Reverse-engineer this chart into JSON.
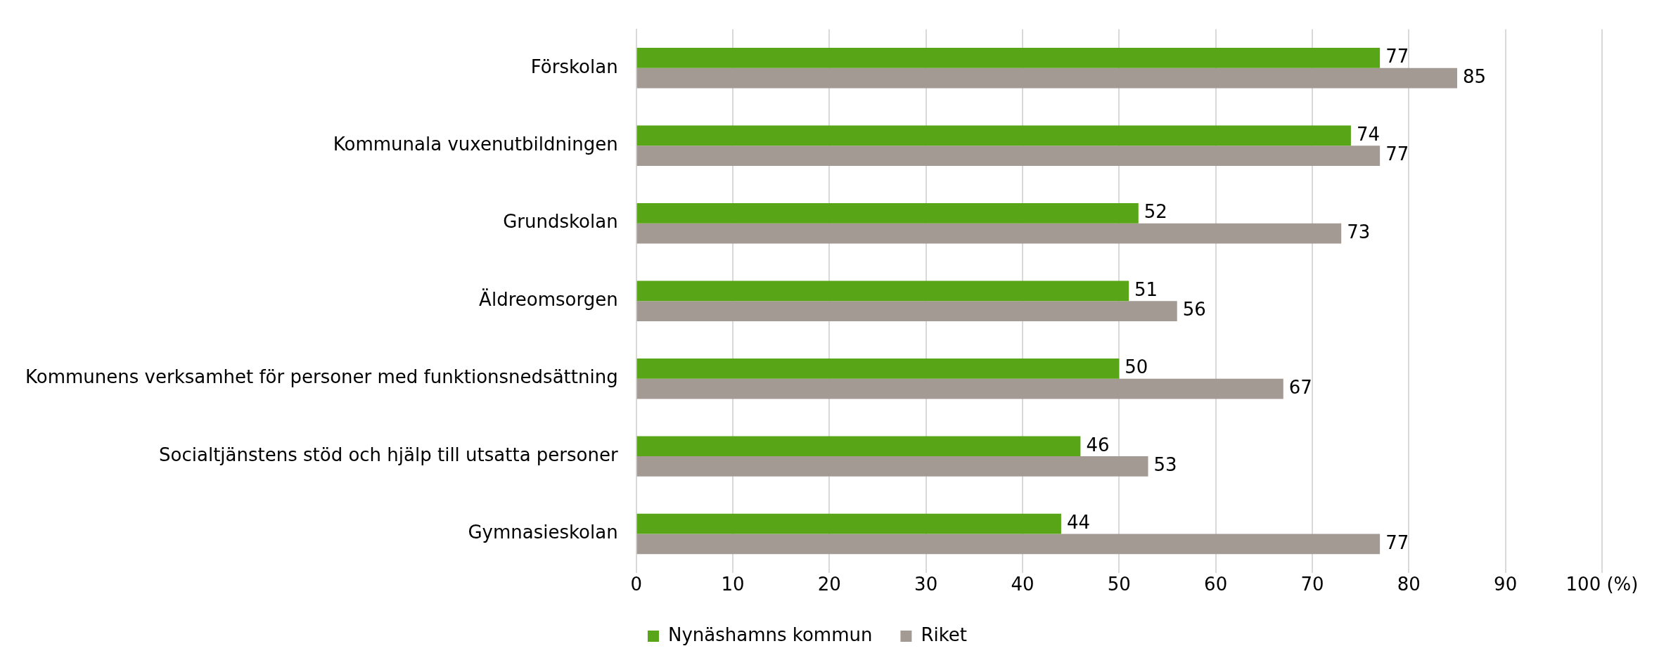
{
  "chart_data": {
    "type": "bar",
    "orientation": "horizontal",
    "categories": [
      "Förskolan",
      "Kommunala vuxenutbildningen",
      "Grundskolan",
      "Äldreomsorgen",
      "Kommunens verksamhet för personer med funktionsnedsättning",
      "Socialtjänstens stöd och hjälp till utsatta personer",
      "Gymnasieskolan"
    ],
    "series": [
      {
        "name": "Nynäshamns kommun",
        "color": "#58a618",
        "values": [
          77,
          74,
          52,
          51,
          50,
          46,
          44
        ]
      },
      {
        "name": "Riket",
        "color": "#a39a93",
        "values": [
          85,
          77,
          73,
          56,
          67,
          53,
          77
        ]
      }
    ],
    "xlim": [
      0,
      100
    ],
    "xticks": [
      0,
      10,
      20,
      30,
      40,
      50,
      60,
      70,
      80,
      90,
      {
        "value": 100,
        "label": "100 (%)"
      }
    ],
    "grid": "x",
    "legend": "bottom",
    "data_labels": true
  }
}
